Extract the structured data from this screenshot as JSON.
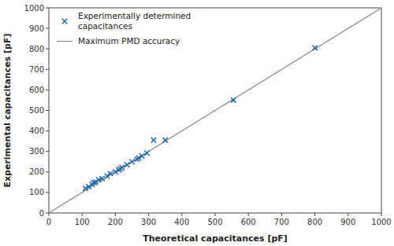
{
  "chart_data": {
    "type": "scatter",
    "xlabel": "Theoretical capacitances [pF]",
    "ylabel": "Experimental capacitances [pF]",
    "series": [
      {
        "name": "Experimentally determined\ncapacitances",
        "type": "scatter",
        "color": "#2166ac",
        "marker": "x",
        "x": [
          110,
          120,
          130,
          135,
          140,
          150,
          160,
          175,
          185,
          200,
          210,
          215,
          220,
          235,
          250,
          265,
          270,
          280,
          295,
          315,
          350,
          555,
          800
        ],
        "values": [
          120,
          128,
          140,
          148,
          150,
          162,
          168,
          180,
          192,
          200,
          210,
          215,
          222,
          235,
          250,
          262,
          268,
          278,
          292,
          355,
          355,
          550,
          805
        ]
      },
      {
        "name": "Maximum PMD accuracy",
        "type": "line",
        "color": "#888888",
        "x": [
          0,
          1000
        ],
        "values": [
          0,
          1000
        ]
      }
    ],
    "xlim": [
      0,
      1000
    ],
    "ylim": [
      0,
      1000
    ],
    "xticks": [
      0,
      100,
      200,
      300,
      400,
      500,
      600,
      700,
      800,
      900,
      1000
    ],
    "yticks": [
      0,
      100,
      200,
      300,
      400,
      500,
      600,
      700,
      800,
      900,
      1000
    ],
    "grid": false,
    "legend": "upper left"
  }
}
